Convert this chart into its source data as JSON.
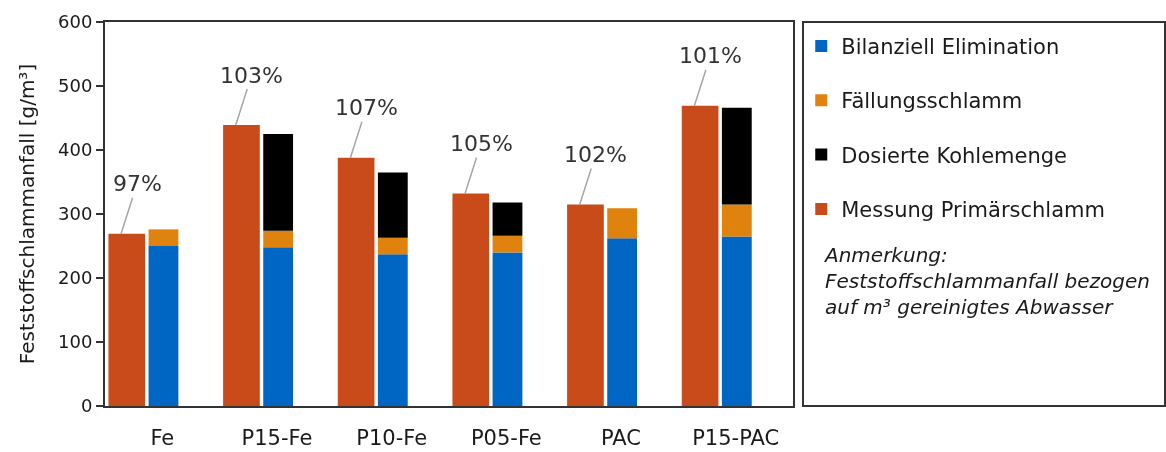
{
  "chart_data": {
    "type": "bar",
    "ylabel": "Feststoffschlammanfall [g/m³]",
    "categories": [
      null,
      "Fe",
      null,
      "P15-Fe",
      null,
      "P10-Fe",
      null,
      "P05-Fe",
      null,
      "PAC",
      null,
      "P15-PAC"
    ],
    "stacked": true,
    "series": [
      {
        "name": "Bilanziell Elimination",
        "color": "#0066c4",
        "values": [
          null,
          250,
          null,
          248,
          null,
          237,
          null,
          240,
          null,
          262,
          null,
          265
        ]
      },
      {
        "name": "Fällungsschlamm",
        "color": "#e0830e",
        "values": [
          null,
          26,
          null,
          26,
          null,
          26,
          null,
          26,
          null,
          47,
          null,
          50
        ]
      },
      {
        "name": "Dosierte Kohlemenge",
        "color": "#000000",
        "values": [
          null,
          null,
          null,
          151,
          null,
          102,
          null,
          52,
          null,
          null,
          null,
          151
        ]
      },
      {
        "name": "Messung Primärschlamm",
        "color": "#c84b19",
        "values": [
          269,
          null,
          439,
          null,
          388,
          null,
          332,
          null,
          315,
          null,
          469,
          null
        ]
      }
    ],
    "ylim": [
      0,
      600
    ],
    "yticks": [
      0,
      100,
      200,
      300,
      400,
      500,
      600
    ],
    "legend": "right",
    "annotations": [
      {
        "text": "97%",
        "y": 269
      },
      {
        "text": "103%",
        "y": 439
      },
      {
        "text": "107%",
        "y": 388
      },
      {
        "text": "105%",
        "y": 332
      },
      {
        "text": "102%",
        "y": 315
      },
      {
        "text": "101%",
        "y": 469
      },
      "Anmerkung:\nFeststoffschlammanfall bezogen\nauf m³ gereinigtes Abwasser"
    ]
  }
}
